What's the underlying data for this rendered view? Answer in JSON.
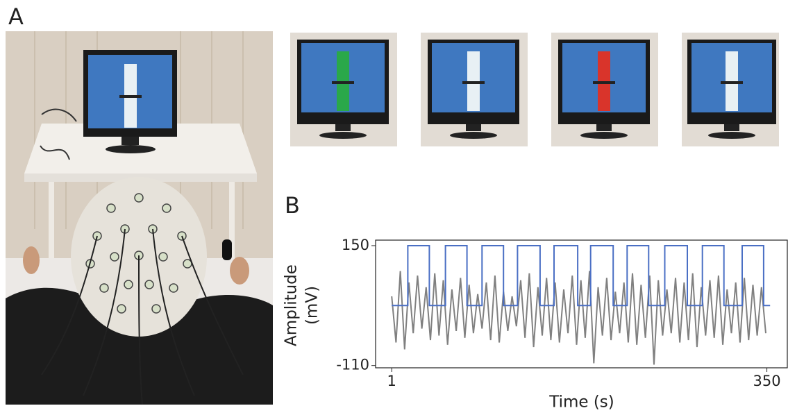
{
  "panel_labels": [
    "A",
    "B"
  ],
  "chart_data": {
    "type": "line",
    "xlabel": "Time (s)",
    "ylabel": [
      "Amplitude",
      "(mV)"
    ],
    "xlim": [
      -14,
      369
    ],
    "ylim": [
      -115,
      162
    ],
    "xticks": [
      1,
      350
    ],
    "yticks": [
      150,
      -110
    ],
    "series": [
      {
        "color": "#808080",
        "x": [
          1,
          5,
          9,
          13,
          17,
          21,
          25,
          29,
          33,
          37,
          41,
          45,
          49,
          53,
          57,
          61,
          65,
          69,
          73,
          77,
          81,
          85,
          89,
          93,
          97,
          101,
          105,
          109,
          113,
          117,
          121,
          125,
          129,
          133,
          137,
          141,
          145,
          149,
          153,
          157,
          161,
          165,
          169,
          173,
          177,
          181,
          185,
          189,
          193,
          197,
          201,
          205,
          209,
          213,
          217,
          221,
          225,
          229,
          233,
          237,
          241,
          245,
          249,
          253,
          257,
          261,
          265,
          269,
          273,
          277,
          281,
          285,
          289,
          293,
          297,
          301,
          305,
          309,
          313,
          317,
          321,
          325,
          329,
          333,
          337,
          341,
          345,
          349
        ],
        "values": [
          40,
          -60,
          95,
          -75,
          70,
          -40,
          85,
          -30,
          60,
          -55,
          90,
          -45,
          75,
          -65,
          55,
          -35,
          80,
          -50,
          65,
          -40,
          45,
          -30,
          70,
          -55,
          85,
          -60,
          50,
          -35,
          40,
          -25,
          75,
          -50,
          90,
          -70,
          60,
          -45,
          80,
          -55,
          70,
          -60,
          55,
          -40,
          85,
          -65,
          75,
          -50,
          95,
          -105,
          60,
          -45,
          80,
          -55,
          50,
          -40,
          70,
          -60,
          90,
          -65,
          65,
          -50,
          85,
          -108,
          75,
          -45,
          55,
          -40,
          80,
          -60,
          70,
          -55,
          90,
          -70,
          60,
          -45,
          75,
          -50,
          85,
          -65,
          55,
          -40,
          70,
          -60,
          80,
          -55,
          65,
          -45,
          60,
          -40
        ]
      },
      {
        "color": "#4a6fc4",
        "x": [
          1,
          16,
          16,
          36,
          36,
          51,
          51,
          71,
          71,
          85,
          85,
          105,
          105,
          118,
          118,
          139,
          139,
          152,
          152,
          174,
          174,
          186,
          186,
          207,
          207,
          220,
          220,
          240,
          240,
          255,
          255,
          276,
          276,
          290,
          290,
          310,
          310,
          327,
          327,
          347,
          347,
          353
        ],
        "values": [
          20,
          20,
          150,
          150,
          20,
          20,
          150,
          150,
          20,
          20,
          150,
          150,
          20,
          20,
          150,
          150,
          20,
          20,
          150,
          150,
          20,
          20,
          150,
          150,
          20,
          20,
          150,
          150,
          20,
          20,
          150,
          150,
          20,
          20,
          150,
          150,
          20,
          20,
          150,
          150,
          20,
          20
        ]
      }
    ]
  }
}
